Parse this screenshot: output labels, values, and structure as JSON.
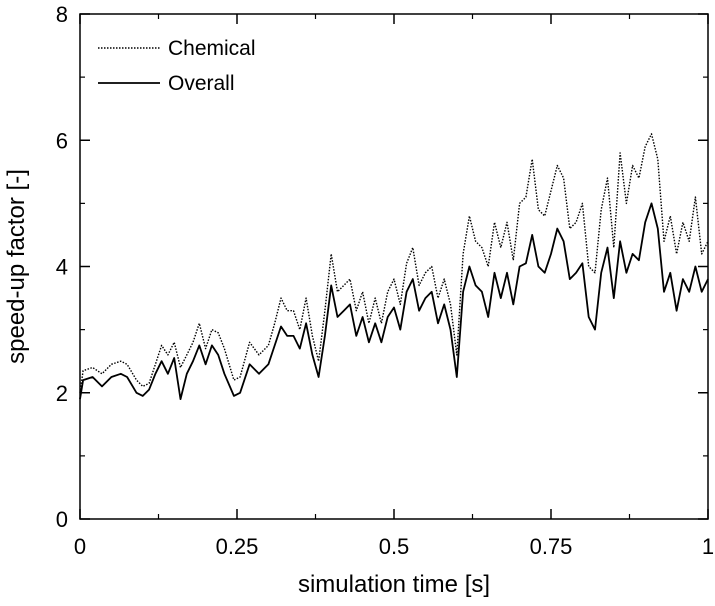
{
  "chart_data": {
    "type": "line",
    "xlabel": "simulation time [s]",
    "ylabel": "speed-up factor [-]",
    "xlim": [
      0,
      1
    ],
    "ylim": [
      0,
      8
    ],
    "xticks": [
      0,
      0.25,
      0.5,
      0.75,
      1
    ],
    "xtick_labels": [
      "0",
      "0.25",
      "0.5",
      "0.75",
      "1"
    ],
    "yticks": [
      0,
      2,
      4,
      6,
      8
    ],
    "ytick_labels": [
      "0",
      "2",
      "4",
      "6",
      "8"
    ],
    "grid": false,
    "legend_position": "top-left",
    "series": [
      {
        "name": "Chemical",
        "style": "dotted",
        "color": "#000000",
        "points": [
          [
            0,
            2.0
          ],
          [
            0.005,
            2.35
          ],
          [
            0.02,
            2.4
          ],
          [
            0.035,
            2.3
          ],
          [
            0.05,
            2.45
          ],
          [
            0.065,
            2.5
          ],
          [
            0.075,
            2.45
          ],
          [
            0.09,
            2.2
          ],
          [
            0.1,
            2.1
          ],
          [
            0.11,
            2.15
          ],
          [
            0.12,
            2.45
          ],
          [
            0.13,
            2.75
          ],
          [
            0.14,
            2.6
          ],
          [
            0.15,
            2.8
          ],
          [
            0.16,
            2.4
          ],
          [
            0.17,
            2.6
          ],
          [
            0.18,
            2.8
          ],
          [
            0.19,
            3.1
          ],
          [
            0.2,
            2.7
          ],
          [
            0.21,
            3.0
          ],
          [
            0.22,
            2.95
          ],
          [
            0.23,
            2.7
          ],
          [
            0.245,
            2.2
          ],
          [
            0.255,
            2.25
          ],
          [
            0.27,
            2.8
          ],
          [
            0.285,
            2.6
          ],
          [
            0.3,
            2.75
          ],
          [
            0.31,
            3.1
          ],
          [
            0.32,
            3.5
          ],
          [
            0.33,
            3.3
          ],
          [
            0.34,
            3.3
          ],
          [
            0.35,
            3.0
          ],
          [
            0.36,
            3.5
          ],
          [
            0.37,
            2.9
          ],
          [
            0.38,
            2.5
          ],
          [
            0.39,
            3.3
          ],
          [
            0.4,
            4.2
          ],
          [
            0.41,
            3.6
          ],
          [
            0.42,
            3.7
          ],
          [
            0.43,
            3.8
          ],
          [
            0.44,
            3.3
          ],
          [
            0.45,
            3.6
          ],
          [
            0.46,
            3.1
          ],
          [
            0.47,
            3.5
          ],
          [
            0.48,
            3.1
          ],
          [
            0.49,
            3.6
          ],
          [
            0.5,
            3.8
          ],
          [
            0.51,
            3.4
          ],
          [
            0.52,
            4.05
          ],
          [
            0.53,
            4.3
          ],
          [
            0.54,
            3.7
          ],
          [
            0.55,
            3.9
          ],
          [
            0.56,
            4.0
          ],
          [
            0.57,
            3.5
          ],
          [
            0.58,
            3.8
          ],
          [
            0.59,
            3.4
          ],
          [
            0.6,
            2.6
          ],
          [
            0.61,
            4.2
          ],
          [
            0.62,
            4.8
          ],
          [
            0.63,
            4.4
          ],
          [
            0.64,
            4.3
          ],
          [
            0.65,
            4.0
          ],
          [
            0.66,
            4.7
          ],
          [
            0.67,
            4.3
          ],
          [
            0.68,
            4.7
          ],
          [
            0.69,
            4.1
          ],
          [
            0.7,
            5.0
          ],
          [
            0.71,
            5.1
          ],
          [
            0.72,
            5.7
          ],
          [
            0.73,
            4.9
          ],
          [
            0.74,
            4.8
          ],
          [
            0.75,
            5.2
          ],
          [
            0.76,
            5.6
          ],
          [
            0.77,
            5.4
          ],
          [
            0.78,
            4.6
          ],
          [
            0.79,
            4.7
          ],
          [
            0.8,
            5.0
          ],
          [
            0.81,
            4.0
          ],
          [
            0.82,
            3.9
          ],
          [
            0.83,
            4.9
          ],
          [
            0.84,
            5.4
          ],
          [
            0.85,
            4.3
          ],
          [
            0.86,
            5.8
          ],
          [
            0.87,
            5.0
          ],
          [
            0.88,
            5.6
          ],
          [
            0.89,
            5.4
          ],
          [
            0.9,
            5.9
          ],
          [
            0.91,
            6.1
          ],
          [
            0.92,
            5.7
          ],
          [
            0.93,
            4.4
          ],
          [
            0.94,
            4.8
          ],
          [
            0.95,
            4.2
          ],
          [
            0.96,
            4.7
          ],
          [
            0.97,
            4.4
          ],
          [
            0.98,
            5.1
          ],
          [
            0.99,
            4.2
          ],
          [
            1.0,
            4.4
          ]
        ]
      },
      {
        "name": "Overall",
        "style": "solid",
        "color": "#000000",
        "points": [
          [
            0,
            1.9
          ],
          [
            0.005,
            2.2
          ],
          [
            0.02,
            2.25
          ],
          [
            0.035,
            2.1
          ],
          [
            0.05,
            2.25
          ],
          [
            0.065,
            2.3
          ],
          [
            0.075,
            2.25
          ],
          [
            0.09,
            2.0
          ],
          [
            0.1,
            1.95
          ],
          [
            0.11,
            2.05
          ],
          [
            0.12,
            2.3
          ],
          [
            0.13,
            2.5
          ],
          [
            0.14,
            2.3
          ],
          [
            0.15,
            2.55
          ],
          [
            0.16,
            1.9
          ],
          [
            0.17,
            2.3
          ],
          [
            0.18,
            2.5
          ],
          [
            0.19,
            2.75
          ],
          [
            0.2,
            2.45
          ],
          [
            0.21,
            2.75
          ],
          [
            0.22,
            2.6
          ],
          [
            0.23,
            2.3
          ],
          [
            0.245,
            1.95
          ],
          [
            0.255,
            2.0
          ],
          [
            0.27,
            2.45
          ],
          [
            0.285,
            2.3
          ],
          [
            0.3,
            2.45
          ],
          [
            0.31,
            2.75
          ],
          [
            0.32,
            3.05
          ],
          [
            0.33,
            2.9
          ],
          [
            0.34,
            2.9
          ],
          [
            0.35,
            2.7
          ],
          [
            0.36,
            3.1
          ],
          [
            0.37,
            2.6
          ],
          [
            0.38,
            2.25
          ],
          [
            0.39,
            2.9
          ],
          [
            0.4,
            3.7
          ],
          [
            0.41,
            3.2
          ],
          [
            0.42,
            3.3
          ],
          [
            0.43,
            3.4
          ],
          [
            0.44,
            2.9
          ],
          [
            0.45,
            3.2
          ],
          [
            0.46,
            2.8
          ],
          [
            0.47,
            3.1
          ],
          [
            0.48,
            2.8
          ],
          [
            0.49,
            3.2
          ],
          [
            0.5,
            3.35
          ],
          [
            0.51,
            3.0
          ],
          [
            0.52,
            3.6
          ],
          [
            0.53,
            3.8
          ],
          [
            0.54,
            3.3
          ],
          [
            0.55,
            3.5
          ],
          [
            0.56,
            3.6
          ],
          [
            0.57,
            3.1
          ],
          [
            0.58,
            3.4
          ],
          [
            0.59,
            3.0
          ],
          [
            0.6,
            2.25
          ],
          [
            0.61,
            3.6
          ],
          [
            0.62,
            4.0
          ],
          [
            0.63,
            3.7
          ],
          [
            0.64,
            3.6
          ],
          [
            0.65,
            3.2
          ],
          [
            0.66,
            3.9
          ],
          [
            0.67,
            3.5
          ],
          [
            0.68,
            3.9
          ],
          [
            0.69,
            3.4
          ],
          [
            0.7,
            4.0
          ],
          [
            0.71,
            4.05
          ],
          [
            0.72,
            4.5
          ],
          [
            0.73,
            4.0
          ],
          [
            0.74,
            3.9
          ],
          [
            0.75,
            4.2
          ],
          [
            0.76,
            4.6
          ],
          [
            0.77,
            4.4
          ],
          [
            0.78,
            3.8
          ],
          [
            0.79,
            3.9
          ],
          [
            0.8,
            4.05
          ],
          [
            0.81,
            3.2
          ],
          [
            0.82,
            3.0
          ],
          [
            0.83,
            3.9
          ],
          [
            0.84,
            4.3
          ],
          [
            0.85,
            3.5
          ],
          [
            0.86,
            4.4
          ],
          [
            0.87,
            3.9
          ],
          [
            0.88,
            4.2
          ],
          [
            0.89,
            4.1
          ],
          [
            0.9,
            4.7
          ],
          [
            0.91,
            5.0
          ],
          [
            0.92,
            4.6
          ],
          [
            0.93,
            3.6
          ],
          [
            0.94,
            3.9
          ],
          [
            0.95,
            3.3
          ],
          [
            0.96,
            3.8
          ],
          [
            0.97,
            3.6
          ],
          [
            0.98,
            4.0
          ],
          [
            0.99,
            3.6
          ],
          [
            1.0,
            3.8
          ]
        ]
      }
    ]
  }
}
